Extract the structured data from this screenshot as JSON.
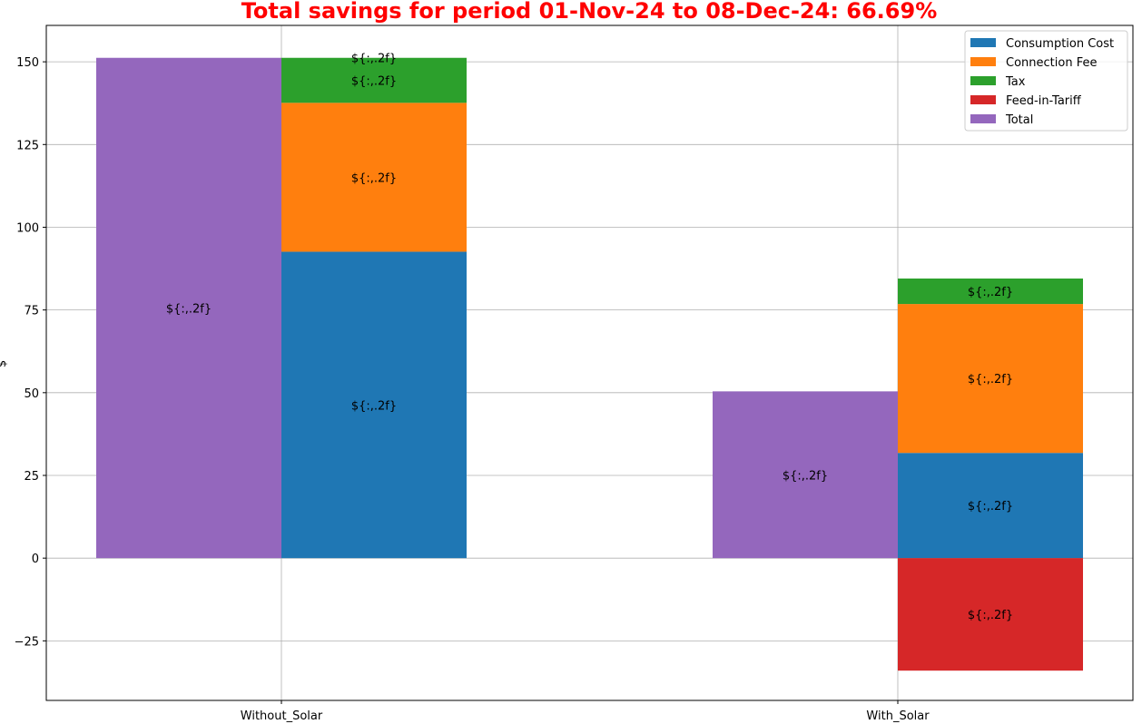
{
  "chart_data": {
    "type": "bar",
    "title": "Total savings for period 01-Nov-24 to 08-Dec-24: 66.69%",
    "title_color": "#ff0000",
    "xlabel": "",
    "ylabel": "$",
    "categories": [
      "Without_Solar",
      "With_Solar"
    ],
    "ylim": [
      -43,
      161
    ],
    "yticks": [
      -25,
      0,
      25,
      50,
      75,
      100,
      125,
      150
    ],
    "ytick_labels": [
      "−25",
      "0",
      "25",
      "50",
      "75",
      "100",
      "125",
      "150"
    ],
    "grid": true,
    "legend_position": "top-right",
    "total_series": {
      "name": "Total",
      "color": "#9467bd",
      "values": [
        151.2,
        50.4
      ],
      "labels": [
        "${:,.2f}",
        "${:,.2f}"
      ]
    },
    "stacked_series": [
      {
        "name": "Consumption Cost",
        "color": "#1f77b4",
        "values": [
          92.6,
          31.8
        ],
        "labels": [
          "${:,.2f}",
          "${:,.2f}"
        ]
      },
      {
        "name": "Connection Fee",
        "color": "#ff7f0e",
        "values": [
          45.0,
          45.0
        ],
        "labels": [
          "${:,.2f}",
          "${:,.2f}"
        ]
      },
      {
        "name": "Tax",
        "color": "#2ca02c",
        "values": [
          13.6,
          7.7
        ],
        "labels": [
          "${:,.2f}",
          "${:,.2f}"
        ]
      },
      {
        "name": "Feed-in-Tariff",
        "color": "#d62728",
        "values": [
          0,
          -34.0
        ],
        "labels": [
          "${:,.2f}",
          "${:,.2f}"
        ]
      }
    ],
    "legend": [
      "Consumption Cost",
      "Connection Fee",
      "Tax",
      "Feed-in-Tariff",
      "Total"
    ]
  }
}
